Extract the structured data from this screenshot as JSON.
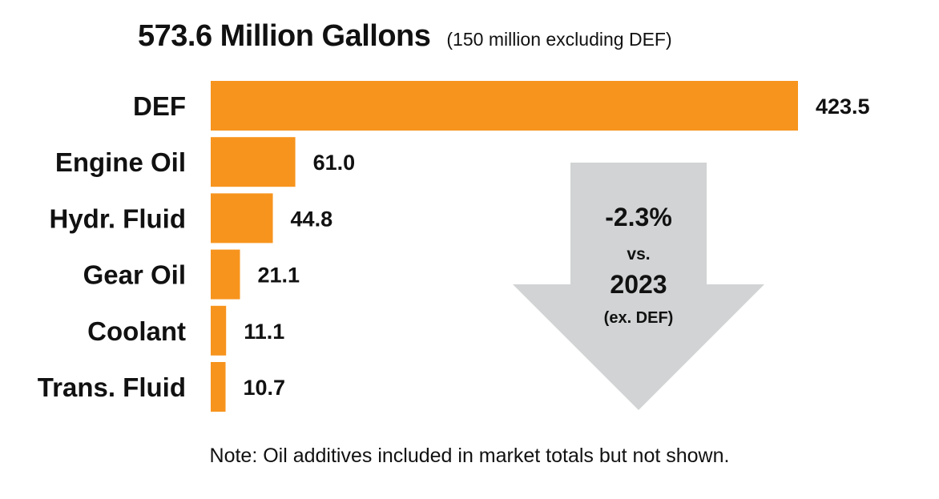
{
  "colors": {
    "bar": "#F7941D",
    "arrow": "#D1D3D4",
    "text": "#111111"
  },
  "chart_data": {
    "type": "bar",
    "orientation": "horizontal",
    "title": "573.6 Million Gallons",
    "subtitle": "(150 million excluding DEF)",
    "categories": [
      "DEF",
      "Engine Oil",
      "Hydr. Fluid",
      "Gear Oil",
      "Coolant",
      "Trans. Fluid"
    ],
    "values": [
      423.5,
      61.0,
      44.8,
      21.1,
      11.1,
      10.7
    ],
    "value_labels": [
      "423.5",
      "61.0",
      "44.8",
      "21.1",
      "11.1",
      "10.7"
    ],
    "xlim": [
      0,
      423.5
    ],
    "grid": false,
    "legend": "none",
    "annotation": {
      "line1": "-2.3%",
      "line2": "vs.",
      "line3": "2023",
      "line4": "(ex. DEF)"
    },
    "note": "Note: Oil additives included in market totals but not shown."
  }
}
